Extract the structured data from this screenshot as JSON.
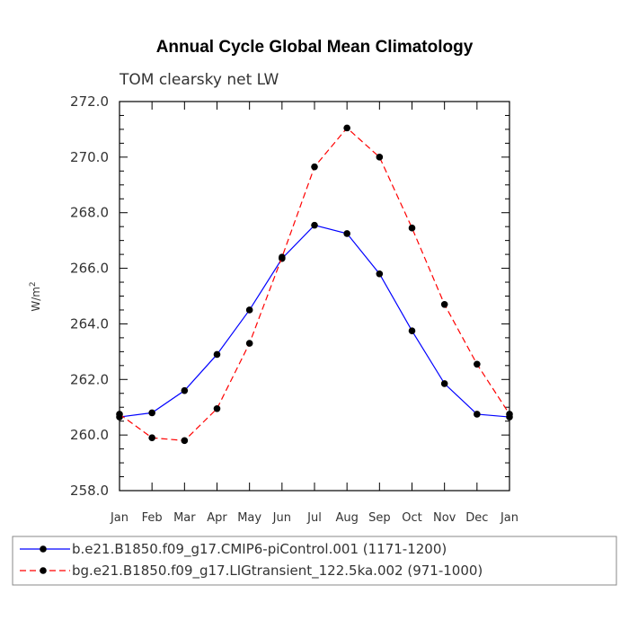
{
  "chart_data": {
    "type": "line",
    "title": "Annual Cycle Global Mean Climatology",
    "subtitle": "TOM clearsky net LW",
    "ylabel": "W/m",
    "ylabel_sup": "2",
    "xlabel": "",
    "ylim": [
      258.0,
      272.0
    ],
    "yticks": [
      258.0,
      260.0,
      262.0,
      264.0,
      266.0,
      268.0,
      270.0,
      272.0
    ],
    "ytick_labels": [
      "258.0",
      "260.0",
      "262.0",
      "264.0",
      "266.0",
      "268.0",
      "270.0",
      "272.0"
    ],
    "categories": [
      "Jan",
      "Feb",
      "Mar",
      "Apr",
      "May",
      "Jun",
      "Jul",
      "Aug",
      "Sep",
      "Oct",
      "Nov",
      "Dec",
      "Jan"
    ],
    "series": [
      {
        "name": "b.e21.B1850.f09_g17.CMIP6-piControl.001 (1171-1200)",
        "color": "#0000ff",
        "dash": "solid",
        "values": [
          260.65,
          260.8,
          261.6,
          262.9,
          264.5,
          266.35,
          267.55,
          267.25,
          265.8,
          263.75,
          261.85,
          260.75,
          260.65
        ]
      },
      {
        "name": "bg.e21.B1850.f09_g17.LIGtransient_122.5ka.002 (971-1000)",
        "color": "#ff0000",
        "dash": "dashed",
        "values": [
          260.75,
          259.9,
          259.8,
          260.95,
          263.3,
          266.4,
          269.65,
          271.05,
          270.0,
          267.45,
          264.7,
          262.55,
          260.75
        ]
      }
    ]
  }
}
